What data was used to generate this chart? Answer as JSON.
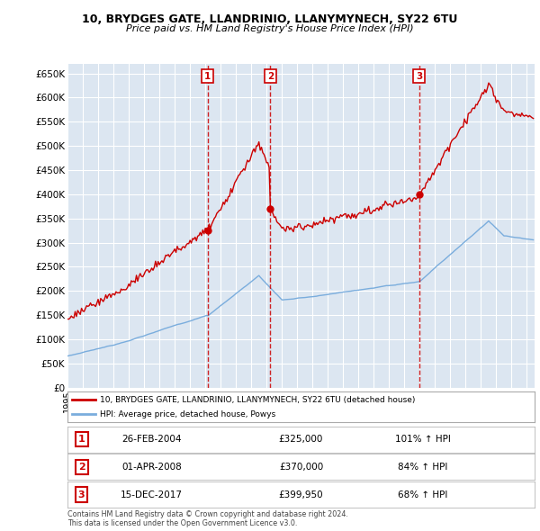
{
  "title": "10, BRYDGES GATE, LLANDRINIO, LLANYMYNECH, SY22 6TU",
  "subtitle": "Price paid vs. HM Land Registry's House Price Index (HPI)",
  "ylim": [
    0,
    670000
  ],
  "yticks": [
    0,
    50000,
    100000,
    150000,
    200000,
    250000,
    300000,
    350000,
    400000,
    450000,
    500000,
    550000,
    600000,
    650000
  ],
  "ytick_labels": [
    "£0",
    "£50K",
    "£100K",
    "£150K",
    "£200K",
    "£250K",
    "£300K",
    "£350K",
    "£400K",
    "£450K",
    "£500K",
    "£550K",
    "£600K",
    "£650K"
  ],
  "background_color": "#ffffff",
  "plot_bg_color": "#dce6f1",
  "grid_color": "#ffffff",
  "red_color": "#cc0000",
  "blue_color": "#7aaddd",
  "sale_dates": [
    2004.15,
    2008.25,
    2017.96
  ],
  "sale_prices": [
    325000,
    370000,
    399950
  ],
  "sale_labels": [
    "1",
    "2",
    "3"
  ],
  "legend_red_label": "10, BRYDGES GATE, LLANDRINIO, LLANYMYNECH, SY22 6TU (detached house)",
  "legend_blue_label": "HPI: Average price, detached house, Powys",
  "table_rows": [
    [
      "1",
      "26-FEB-2004",
      "£325,000",
      "101% ↑ HPI"
    ],
    [
      "2",
      "01-APR-2008",
      "£370,000",
      "84% ↑ HPI"
    ],
    [
      "3",
      "15-DEC-2017",
      "£399,950",
      "68% ↑ HPI"
    ]
  ],
  "footer": "Contains HM Land Registry data © Crown copyright and database right 2024.\nThis data is licensed under the Open Government Licence v3.0.",
  "xmin": 1995,
  "xmax": 2025.5
}
